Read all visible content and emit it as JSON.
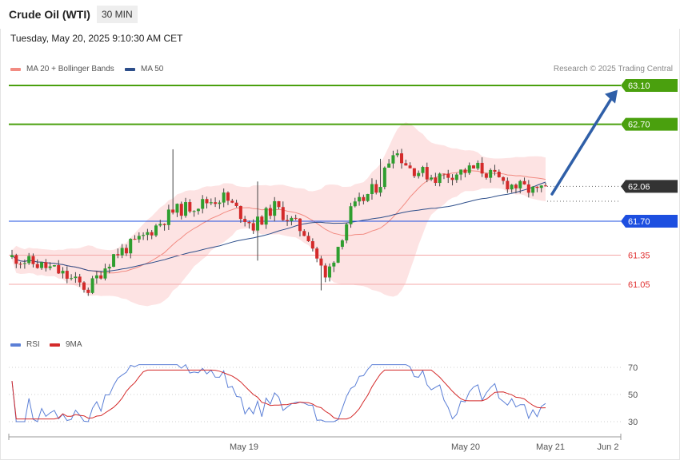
{
  "header": {
    "title": "Crude Oil (WTI)",
    "timeframe": "30 MIN",
    "datetime": "Tuesday, May 20, 2025 9:10:30 AM CET",
    "copyright": "Research © 2025 Trading Central"
  },
  "legend_main": [
    {
      "label": "MA 20 + Bollinger Bands",
      "color": "#f28b82"
    },
    {
      "label": "MA 50",
      "color": "#2d4e8a"
    }
  ],
  "legend_rsi": [
    {
      "label": "RSI",
      "color": "#5b7fd6"
    },
    {
      "label": "9MA",
      "color": "#d42a2a"
    }
  ],
  "chart_data": [
    {
      "type": "candlestick",
      "y_range": [
        60.5,
        63.22
      ],
      "price_levels": [
        {
          "label": "63.10",
          "value": 63.1,
          "kind": "resistance",
          "color": "#4aa00e"
        },
        {
          "label": "62.70",
          "value": 62.7,
          "kind": "resistance",
          "color": "#4aa00e"
        },
        {
          "label": "62.06",
          "value": 62.06,
          "kind": "last-price",
          "color": "#333333"
        },
        {
          "label": "61.70",
          "value": 61.7,
          "kind": "pivot",
          "color": "#1d4fe0"
        },
        {
          "label": "61.35",
          "value": 61.35,
          "kind": "support",
          "color": "#e03030"
        },
        {
          "label": "61.05",
          "value": 61.05,
          "kind": "support",
          "color": "#e03030"
        }
      ],
      "projection": {
        "from": 61.98,
        "to": 63.07
      },
      "x_labels": [
        "May 19",
        "May 20",
        "May 21",
        "Jun 2"
      ]
    },
    {
      "type": "line",
      "name": "RSI panel",
      "y_range": [
        20,
        80
      ],
      "y_ticks": [
        "70",
        "50",
        "30"
      ],
      "series": [
        {
          "name": "RSI",
          "color": "#5b7fd6"
        },
        {
          "name": "9MA",
          "color": "#d42a2a"
        }
      ]
    }
  ]
}
